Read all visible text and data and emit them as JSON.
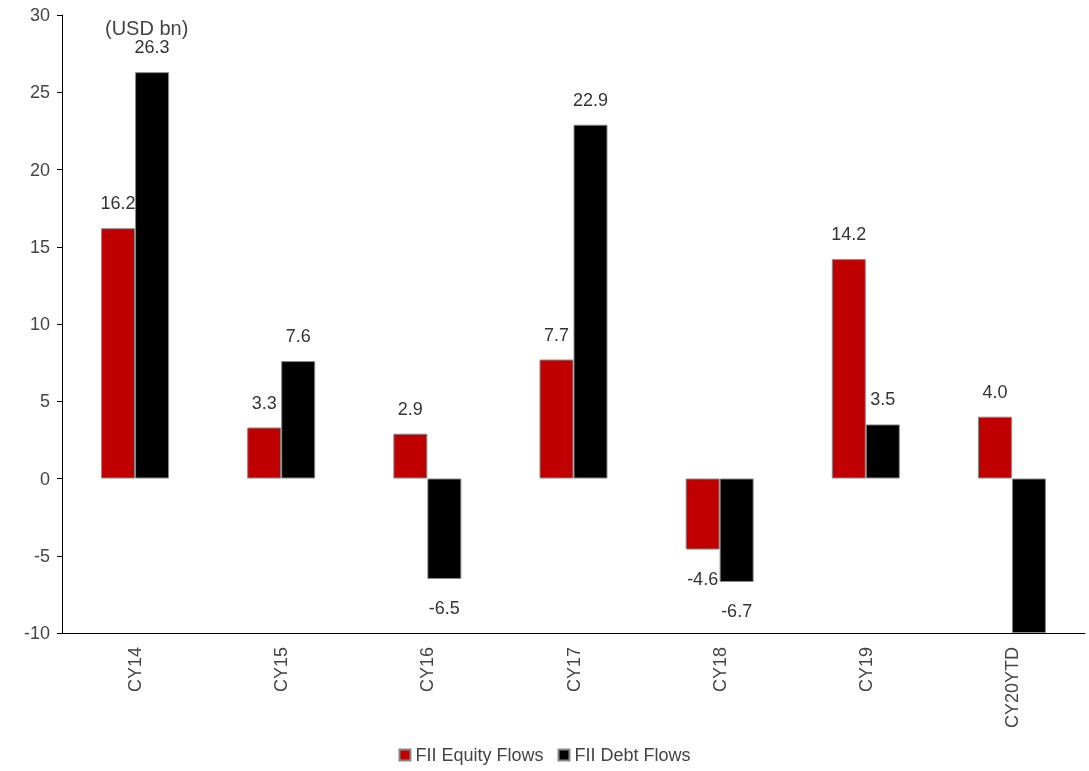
{
  "chart_data": {
    "type": "bar",
    "categories": [
      "CY14",
      "CY15",
      "CY16",
      "CY17",
      "CY18",
      "CY19",
      "CY20YTD"
    ],
    "series": [
      {
        "name": "FII Equity Flows",
        "color": "#c00000",
        "values": [
          16.2,
          3.3,
          2.9,
          7.7,
          -4.6,
          14.2,
          4.0
        ],
        "value_labels": [
          "16.2",
          "3.3",
          "2.9",
          "7.7",
          "-4.6",
          "14.2",
          "4.0"
        ]
      },
      {
        "name": "FII Debt Flows",
        "color": "#000000",
        "values": [
          26.3,
          7.6,
          -6.5,
          22.9,
          -6.7,
          3.5,
          -10
        ],
        "value_labels": [
          "26.3",
          "7.6",
          "-6.5",
          "22.9",
          "-6.7",
          "3.5",
          null
        ]
      }
    ],
    "ylim": [
      -10,
      30
    ],
    "yticks": [
      -10,
      -5,
      0,
      5,
      10,
      15,
      20,
      25,
      30
    ],
    "grid": false,
    "legend": "bottom",
    "annotations": [
      "(USD bn)"
    ]
  }
}
